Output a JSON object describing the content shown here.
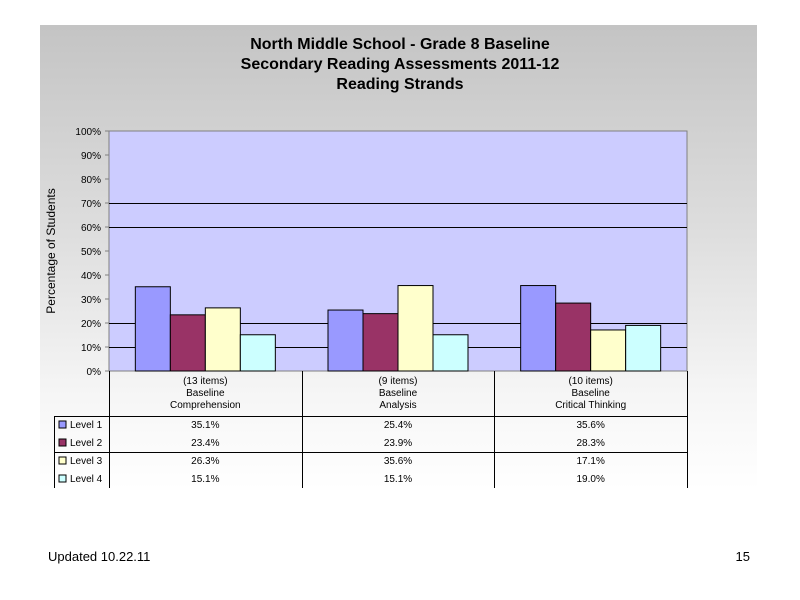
{
  "chart_data": {
    "type": "bar",
    "title_lines": [
      "North Middle School - Grade 8 Baseline",
      "Secondary Reading Assessments 2011-12",
      "Reading Strands"
    ],
    "ylabel": "Percentage of Students",
    "ylim": [
      0,
      100
    ],
    "yticks": [
      "0%",
      "10%",
      "20%",
      "30%",
      "40%",
      "50%",
      "60%",
      "70%",
      "80%",
      "90%",
      "100%"
    ],
    "categories": [
      [
        "(13 items)",
        "Baseline",
        "Comprehension"
      ],
      [
        "(9 items)",
        "Baseline",
        "Analysis"
      ],
      [
        "(10 items)",
        "Baseline",
        "Critical Thinking"
      ]
    ],
    "series": [
      {
        "name": "Level 1",
        "color": "#9999ff",
        "values": [
          35.1,
          25.4,
          35.6
        ],
        "labels": [
          "35.1%",
          "25.4%",
          "35.6%"
        ]
      },
      {
        "name": "Level 2",
        "color": "#993366",
        "values": [
          23.4,
          23.9,
          28.3
        ],
        "labels": [
          "23.4%",
          "23.9%",
          "28.3%"
        ]
      },
      {
        "name": "Level 3",
        "color": "#ffffcc",
        "values": [
          26.3,
          35.6,
          17.1
        ],
        "labels": [
          "26.3%",
          "35.6%",
          "17.1%"
        ]
      },
      {
        "name": "Level 4",
        "color": "#ccffff",
        "values": [
          15.1,
          15.1,
          19.0
        ],
        "labels": [
          "15.1%",
          "15.1%",
          "19.0%"
        ]
      }
    ],
    "gridlines": [
      10,
      20,
      70,
      60
    ],
    "plot_background": "#ccccff",
    "legend": "data-table"
  },
  "footer": {
    "updated": "Updated  10.22.11",
    "page_number": "15"
  }
}
